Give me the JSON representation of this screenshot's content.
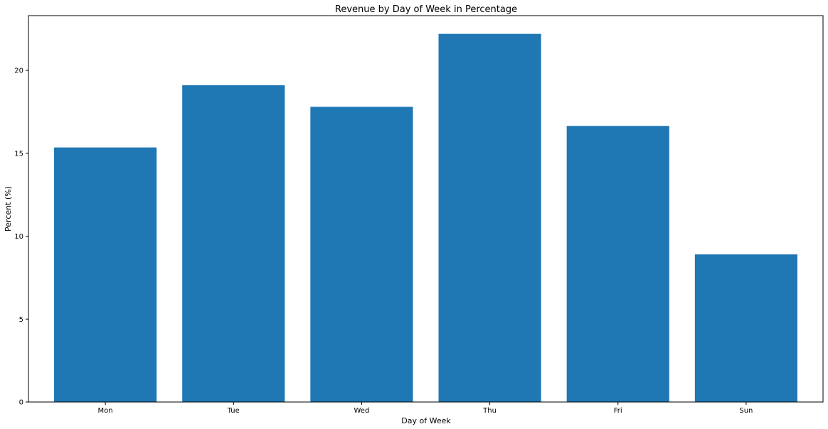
{
  "chart_data": {
    "type": "bar",
    "title": "Revenue by Day of Week in Percentage",
    "xlabel": "Day of Week",
    "ylabel": "Percent (%)",
    "categories": [
      "Mon",
      "Tue",
      "Wed",
      "Thu",
      "Fri",
      "Sun"
    ],
    "values": [
      15.35,
      19.1,
      17.8,
      22.2,
      16.65,
      8.9
    ],
    "ylim": [
      0,
      23.3
    ],
    "yticks": [
      0,
      5,
      10,
      15,
      20
    ],
    "grid": false,
    "bar_color": "#1f77b4"
  }
}
